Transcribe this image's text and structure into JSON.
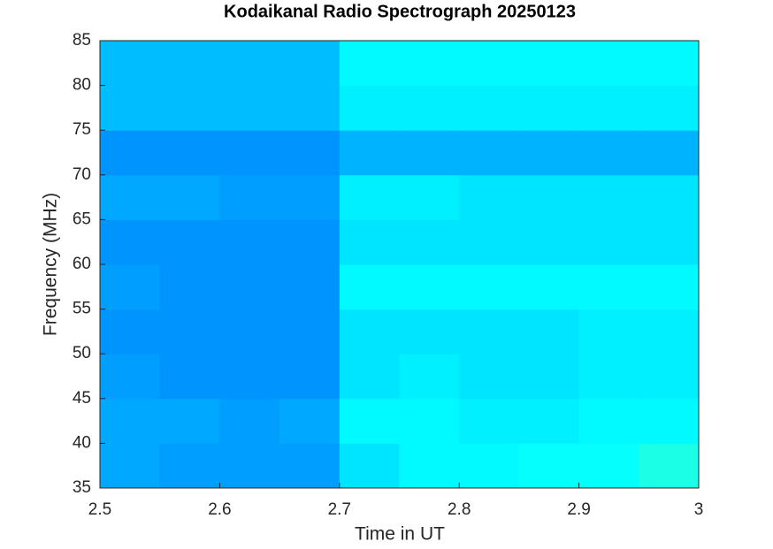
{
  "chart_data": {
    "type": "heatmap",
    "title": "Kodaikanal Radio Spectrograph  20250123",
    "x_label": "Time in UT",
    "y_label": "Frequency (MHz)",
    "colormap": "jet",
    "x": [
      2.525,
      2.575,
      2.625,
      2.675,
      2.725,
      2.775,
      2.825,
      2.875,
      2.925,
      2.975
    ],
    "y": [
      37.5,
      42.5,
      47.5,
      52.5,
      57.5,
      62.5,
      67.5,
      72.5,
      77.5,
      82.5
    ],
    "z": [
      [
        0.29,
        0.28,
        0.28,
        0.28,
        0.35,
        0.37,
        0.37,
        0.38,
        0.38,
        0.4
      ],
      [
        0.29,
        0.29,
        0.28,
        0.29,
        0.37,
        0.37,
        0.36,
        0.36,
        0.37,
        0.37
      ],
      [
        0.28,
        0.27,
        0.27,
        0.27,
        0.35,
        0.36,
        0.35,
        0.35,
        0.36,
        0.36
      ],
      [
        0.27,
        0.27,
        0.27,
        0.27,
        0.35,
        0.35,
        0.35,
        0.35,
        0.36,
        0.36
      ],
      [
        0.28,
        0.27,
        0.27,
        0.27,
        0.37,
        0.37,
        0.37,
        0.37,
        0.37,
        0.37
      ],
      [
        0.27,
        0.27,
        0.27,
        0.27,
        0.35,
        0.35,
        0.35,
        0.35,
        0.35,
        0.35
      ],
      [
        0.29,
        0.29,
        0.28,
        0.28,
        0.36,
        0.36,
        0.35,
        0.35,
        0.35,
        0.35
      ],
      [
        0.27,
        0.27,
        0.27,
        0.27,
        0.3,
        0.3,
        0.3,
        0.3,
        0.3,
        0.3
      ],
      [
        0.31,
        0.31,
        0.31,
        0.31,
        0.36,
        0.36,
        0.36,
        0.36,
        0.36,
        0.36
      ],
      [
        0.31,
        0.31,
        0.31,
        0.31,
        0.37,
        0.37,
        0.37,
        0.37,
        0.37,
        0.37
      ]
    ],
    "xlim": [
      2.5,
      3
    ],
    "xticks": [
      2.5,
      2.6,
      2.7,
      2.8,
      2.9,
      3
    ],
    "ylim": [
      35,
      85
    ],
    "yticks": [
      35,
      40,
      45,
      50,
      55,
      60,
      65,
      70,
      75,
      80,
      85
    ]
  }
}
